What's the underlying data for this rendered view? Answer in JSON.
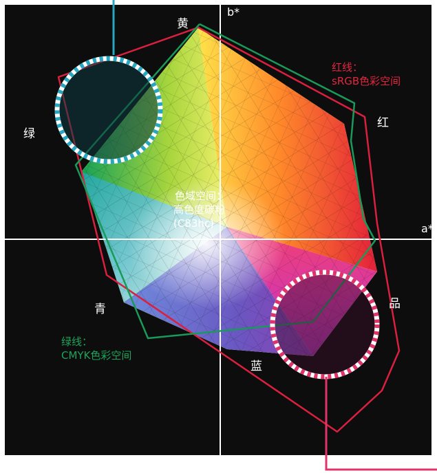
{
  "axes": {
    "b_label": "b*",
    "a_label": "a*"
  },
  "color_labels": {
    "yellow": "黄",
    "green": "绿",
    "red": "红",
    "cyan": "青",
    "magenta": "品",
    "blue": "蓝"
  },
  "center_label": {
    "line1": "色域空间：",
    "line2": "高色度碳粉",
    "line3": "(C83hc)"
  },
  "legend_red": {
    "line1": "红线：",
    "line2": "sRGB色彩空间"
  },
  "legend_green": {
    "line1": "绿线：",
    "line2": "CMYK色彩空间"
  },
  "colors": {
    "background": "#0d0d0d",
    "srgb_line": "#d9203f",
    "cmyk_line": "#1a9a5a",
    "cyan_callout": "#27a7bf",
    "magenta_callout": "#e0336a",
    "axis": "#ffffff"
  }
}
